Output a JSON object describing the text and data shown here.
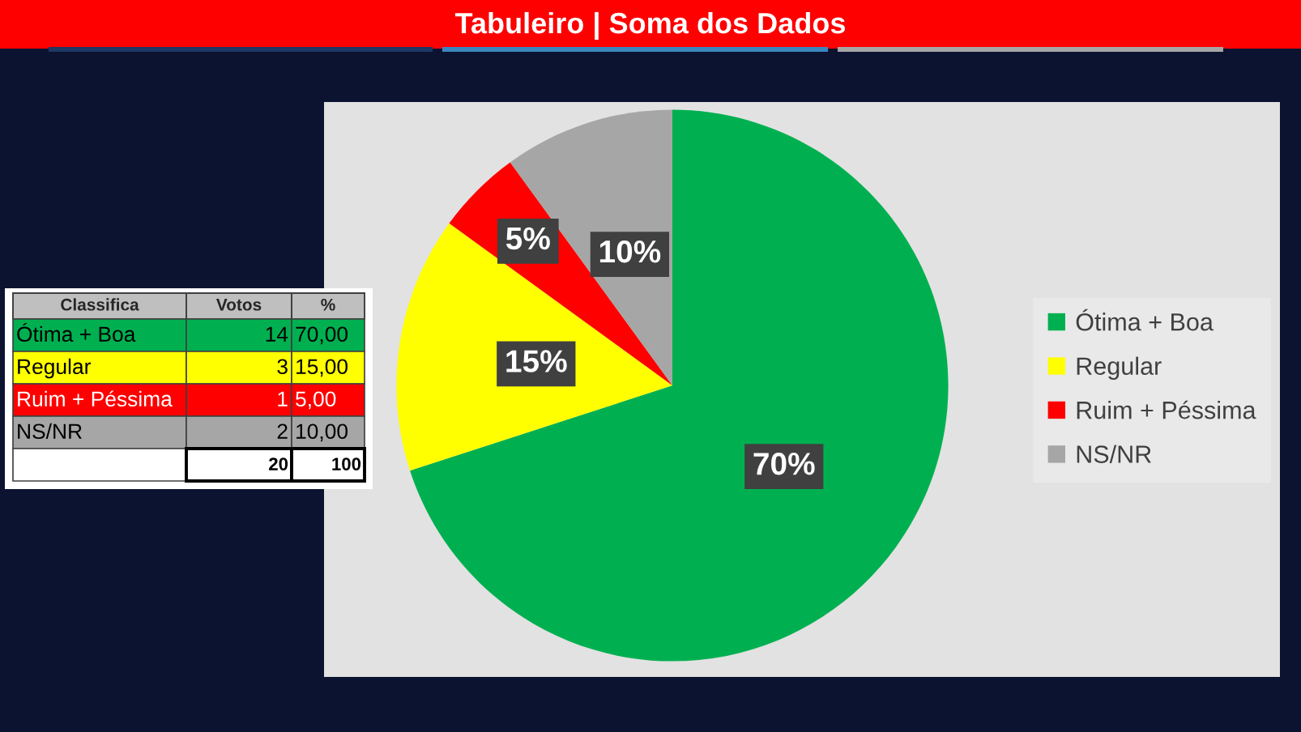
{
  "chart_data": [
    {
      "type": "other",
      "ylabel": "Classifica",
      "categories": [
        "Ótima + Boa",
        "Regular",
        "Ruim + Péssima",
        "NS/NR"
      ],
      "colors": [
        "#00b050",
        "#ffff00",
        "#ff0000",
        "#a6a6a6"
      ],
      "data_labels": true,
      "series": [
        {
          "name": "Votos",
          "colors": [
            "#00b050",
            "#ffff00",
            "#ff0000",
            "#a6a6a6"
          ],
          "values": [
            14,
            3,
            1,
            2
          ]
        },
        {
          "name": "%",
          "colors": [
            "#00b050",
            "#ffff00",
            "#ff0000",
            "#a6a6a6"
          ],
          "values": [
            70,
            15,
            5,
            10
          ],
          "value_labels": [
            "70,00",
            "15,00",
            "5,00",
            "10,00"
          ]
        }
      ],
      "totals": [
        "20",
        "100"
      ]
    },
    {
      "type": "pie",
      "title": "Tabuleiro | Soma dos Dados",
      "categories": [
        "Ótima + Boa",
        "Regular",
        "Ruim + Péssima",
        "NS/NR"
      ],
      "values": [
        70,
        15,
        5,
        10
      ],
      "colors": [
        "#00b050",
        "#ffff00",
        "#ff0000",
        "#a6a6a6"
      ],
      "value_labels": [
        "70%",
        "15%",
        "5%",
        "10%"
      ],
      "legend": "right"
    }
  ]
}
